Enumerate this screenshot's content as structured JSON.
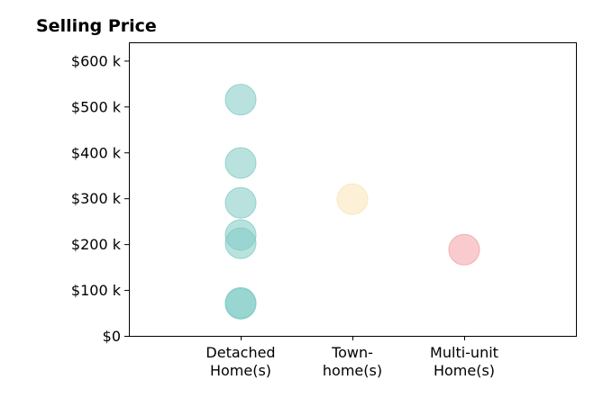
{
  "chart_data": {
    "type": "scatter",
    "title": "Selling Price",
    "xlabel": "",
    "ylabel": "",
    "categories": [
      [
        "Detached",
        "Home(s)"
      ],
      [
        "Town-",
        "home(s)"
      ],
      [
        "Multi-unit",
        "Home(s)"
      ]
    ],
    "xlim": [
      0,
      4
    ],
    "ylim": [
      0,
      640000
    ],
    "yticks": [
      0,
      100000,
      200000,
      300000,
      400000,
      500000,
      600000
    ],
    "ytick_labels": [
      "$0",
      "$100 k",
      "$200 k",
      "$300 k",
      "$400 k",
      "$500 k",
      "$600 k"
    ],
    "grid": false,
    "series": [
      {
        "color": "#80CBC4",
        "x": [
          1,
          1,
          1,
          1,
          1,
          1,
          1
        ],
        "y": [
          515000,
          377000,
          290000,
          220000,
          202000,
          72000,
          70000
        ]
      },
      {
        "color": "#FAE3B4",
        "x": [
          2
        ],
        "y": [
          298000
        ]
      },
      {
        "color": "#F4A0A8",
        "x": [
          3
        ],
        "y": [
          188000
        ]
      }
    ]
  }
}
